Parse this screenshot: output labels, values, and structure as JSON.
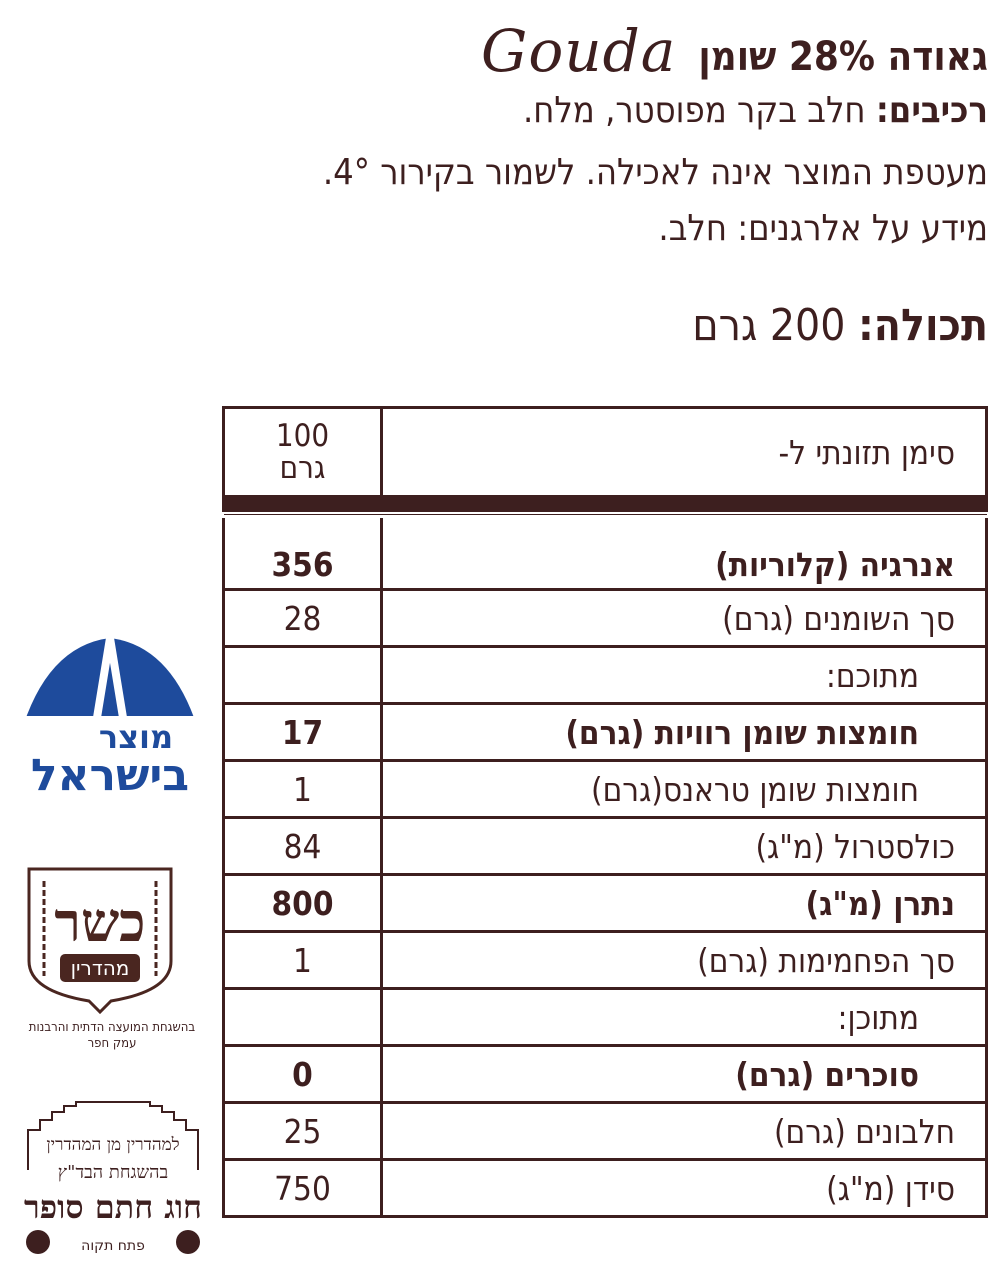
{
  "product": {
    "title_he": "גאודה 28% שומן",
    "title_en": "Gouda"
  },
  "ingredients": {
    "label": "רכיבים:",
    "text": " חלב בקר מפוסטר, מלח."
  },
  "storage": "מעטפת המוצר אינה לאכילה. לשמור בקירור 4°.",
  "allergens": "מידע על אלרגנים: חלב.",
  "net": {
    "label": "תכולה:",
    "value": " 200 גרם"
  },
  "nutrition": {
    "header_label": "סימן תזונתי ל-",
    "header_value_1": "100",
    "header_value_2": "גרם",
    "rows": [
      {
        "label": "אנרגיה (קלוריות)",
        "value": "356"
      },
      {
        "label": "סך השומנים (גרם)",
        "value": "28"
      },
      {
        "label": "מתוכם:",
        "value": ""
      },
      {
        "label": "חומצות שומן רוויות (גרם)",
        "value": "17"
      },
      {
        "label": "חומצות שומן טראנס(גרם)",
        "value": "1"
      },
      {
        "label": "כולסטרול (מ\"ג)",
        "value": "84"
      },
      {
        "label": "נתרן (מ\"ג)",
        "value": "800"
      },
      {
        "label": "סך הפחמימות (גרם)",
        "value": "1"
      },
      {
        "label": "מתוכן:",
        "value": ""
      },
      {
        "label": "סוכרים (גרם)",
        "value": "0"
      },
      {
        "label": "חלבונים (גרם)",
        "value": "25"
      },
      {
        "label": "סידן (מ\"ג)",
        "value": "750"
      }
    ]
  },
  "logos": {
    "made_in_israel": "מוצר בישראל",
    "kosher": {
      "main": "כשר",
      "badge": "מהדרין",
      "caption_1": "בהשגחת המועצה הדתית והרבנות",
      "caption_2": "עמק חפר"
    },
    "badatz": {
      "arc": "למהדרין מן המהדרין",
      "sub": "בהשגחת הבד\"ץ",
      "main": "חוג חתם סופר",
      "city": "פתח תקוה"
    }
  },
  "colors": {
    "text": "#3d1f1f",
    "blue": "#1e4b9c"
  }
}
